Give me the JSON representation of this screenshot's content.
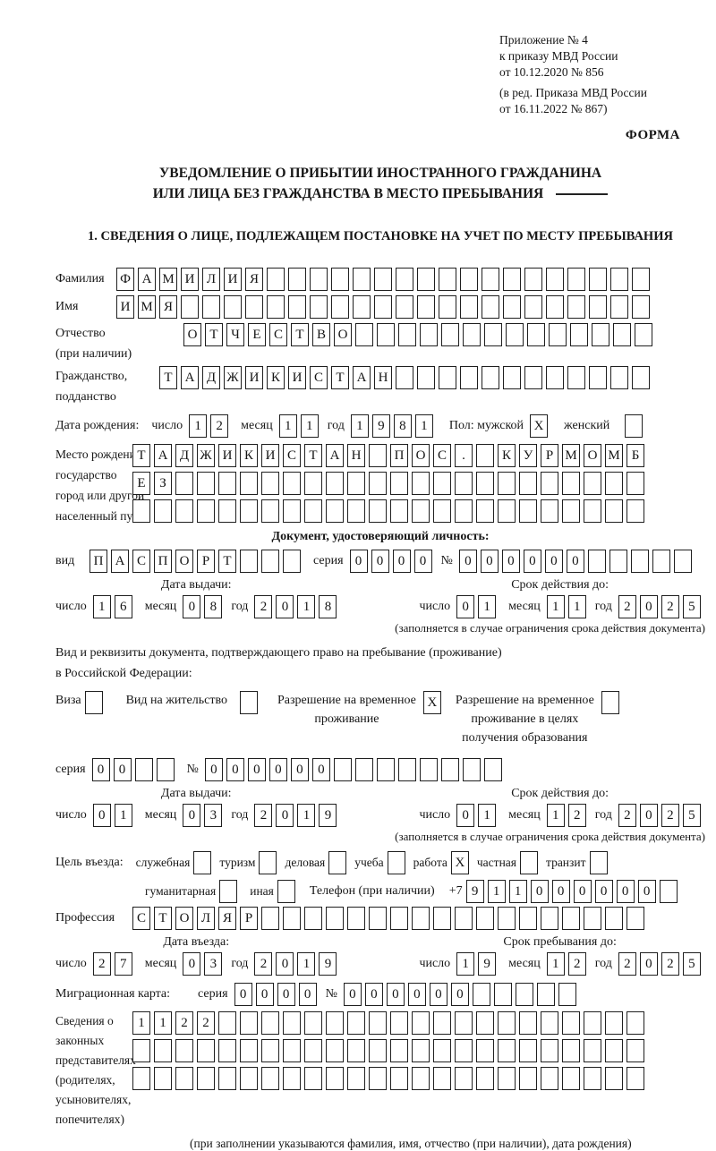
{
  "colors": {
    "ink": "#161616",
    "box_border": "#1f1f1f",
    "background": "#ffffff"
  },
  "header": {
    "appendix": [
      "Приложение № 4",
      "к приказу МВД России",
      "от 10.12.2020 № 856"
    ],
    "revision": [
      "(в ред. Приказа МВД России",
      "от 16.11.2022 № 867)"
    ],
    "forma": "ФОРМА",
    "title1": "УВЕДОМЛЕНИЕ О ПРИБЫТИИ ИНОСТРАННОГО ГРАЖДАНИНА",
    "title2": "ИЛИ ЛИЦА БЕЗ ГРАЖДАНСТВА В МЕСТО ПРЕБЫВАНИЯ",
    "section1": "1. СВЕДЕНИЯ О ЛИЦЕ, ПОДЛЕЖАЩЕМ ПОСТАНОВКЕ НА УЧЕТ ПО МЕСТУ ПРЕБЫВАНИЯ"
  },
  "labels": {
    "surname": "Фамилия",
    "name": "Имя",
    "patronymic": "Отчество",
    "patronymic2": "(при наличии)",
    "citizenship": "Гражданство,",
    "citizenship2": "подданство",
    "birth_date": "Дата рождения:",
    "day": "число",
    "month": "месяц",
    "year": "год",
    "sex_male": "Пол: мужской",
    "sex_female": "женский",
    "birth_place1": "Место рождения:",
    "birth_place2": "государство",
    "birth_place3": "город или другой",
    "birth_place4": "населенный пункт",
    "doc_header": "Документ, удостоверяющий личность:",
    "doc_kind": "вид",
    "series": "серия",
    "number": "№",
    "issue_date": "Дата выдачи:",
    "valid_until": "Срок действия до:",
    "valid_note": "(заполняется в случае ограничения срока действия документа)",
    "permit_intro1": "Вид и реквизиты документа, подтверждающего право на пребывание (проживание)",
    "permit_intro2": "в Российской Федерации:",
    "visa": "Виза",
    "residence_permit": "Вид на жительство",
    "temp_permit1": "Разрешение на временное",
    "temp_permit2": "проживание",
    "edu_permit1": "Разрешение на временное",
    "edu_permit2": "проживание в целях",
    "edu_permit3": "получения образования",
    "purpose": "Цель въезда:",
    "official": "служебная",
    "tourism": "туризм",
    "business": "деловая",
    "study": "учеба",
    "work": "работа",
    "private": "частная",
    "transit": "транзит",
    "humanitarian": "гуманитарная",
    "other": "иная",
    "phone": "Телефон (при наличии)",
    "phone_prefix": "+7",
    "profession": "Профессия",
    "entry_date": "Дата въезда:",
    "stay_until": "Срок пребывания до:",
    "migration_card": "Миграционная карта:",
    "representatives": [
      "Сведения о",
      "законных",
      "представителях",
      "(родителях,",
      "усыновителях,",
      "попечителях)"
    ],
    "representatives_note": "(при заполнении указываются фамилия, имя, отчество (при наличии), дата рождения)"
  },
  "rows": {
    "surname": {
      "value": "ФАМИЛИЯ",
      "cells": 25
    },
    "name": {
      "value": "ИМЯ",
      "cells": 25
    },
    "patronymic": {
      "value": "ОТЧЕСТВО",
      "cells": 22
    },
    "citizenship": {
      "value": "ТАДЖИКИСТАН",
      "cells": 23
    },
    "birth_day": {
      "value": "12",
      "cells": 2
    },
    "birth_month": {
      "value": "11",
      "cells": 2
    },
    "birth_year": {
      "value": "1981",
      "cells": 4
    },
    "sex_male": {
      "value": "X",
      "cells": 1
    },
    "sex_female": {
      "value": "",
      "cells": 1
    },
    "birth_place1": {
      "value": "ТАДЖИКИСТАН ПОС. КУРМОМБ",
      "cells": 24
    },
    "birth_place2": {
      "value": "ЕЗ",
      "cells": 24
    },
    "birth_place3": {
      "value": "",
      "cells": 24
    },
    "doc_kind": {
      "value": "ПАСПОРТ",
      "cells": 10
    },
    "doc_series": {
      "value": "0000",
      "cells": 4
    },
    "doc_number": {
      "value": "000000",
      "cells": 11
    },
    "doc_issue_day": {
      "value": "16",
      "cells": 2
    },
    "doc_issue_month": {
      "value": "08",
      "cells": 2
    },
    "doc_issue_year": {
      "value": "2018",
      "cells": 4
    },
    "doc_until_day": {
      "value": "01",
      "cells": 2
    },
    "doc_until_month": {
      "value": "11",
      "cells": 2
    },
    "doc_until_year": {
      "value": "2025",
      "cells": 4
    },
    "visa_box": {
      "value": "",
      "cells": 1
    },
    "residence_box": {
      "value": "",
      "cells": 1
    },
    "temp_permit_box": {
      "value": "X",
      "cells": 1
    },
    "edu_permit_box": {
      "value": "",
      "cells": 1
    },
    "permit_series": {
      "value": "00",
      "cells": 4
    },
    "permit_number": {
      "value": "000000",
      "cells": 14
    },
    "permit_issue_day": {
      "value": "01",
      "cells": 2
    },
    "permit_issue_month": {
      "value": "03",
      "cells": 2
    },
    "permit_issue_year": {
      "value": "2019",
      "cells": 4
    },
    "permit_until_day": {
      "value": "01",
      "cells": 2
    },
    "permit_until_month": {
      "value": "12",
      "cells": 2
    },
    "permit_until_year": {
      "value": "2025",
      "cells": 4
    },
    "purpose_official": {
      "value": "",
      "cells": 1
    },
    "purpose_tourism": {
      "value": "",
      "cells": 1
    },
    "purpose_business": {
      "value": "",
      "cells": 1
    },
    "purpose_study": {
      "value": "",
      "cells": 1
    },
    "purpose_work": {
      "value": "X",
      "cells": 1
    },
    "purpose_private": {
      "value": "",
      "cells": 1
    },
    "purpose_transit": {
      "value": "",
      "cells": 1
    },
    "purpose_humanitarian": {
      "value": "",
      "cells": 1
    },
    "purpose_other": {
      "value": "",
      "cells": 1
    },
    "phone": {
      "value": "911000000",
      "cells": 10
    },
    "profession": {
      "value": "СТОЛЯР",
      "cells": 24
    },
    "entry_day": {
      "value": "27",
      "cells": 2
    },
    "entry_month": {
      "value": "03",
      "cells": 2
    },
    "entry_year": {
      "value": "2019",
      "cells": 4
    },
    "stay_day": {
      "value": "19",
      "cells": 2
    },
    "stay_month": {
      "value": "12",
      "cells": 2
    },
    "stay_year": {
      "value": "2025",
      "cells": 4
    },
    "mig_series": {
      "value": "0000",
      "cells": 4
    },
    "mig_number": {
      "value": "000000",
      "cells": 11
    },
    "rep_row1": {
      "value": "1122",
      "cells": 24
    },
    "rep_row2": {
      "value": "",
      "cells": 24
    },
    "rep_row3": {
      "value": "",
      "cells": 24
    }
  }
}
